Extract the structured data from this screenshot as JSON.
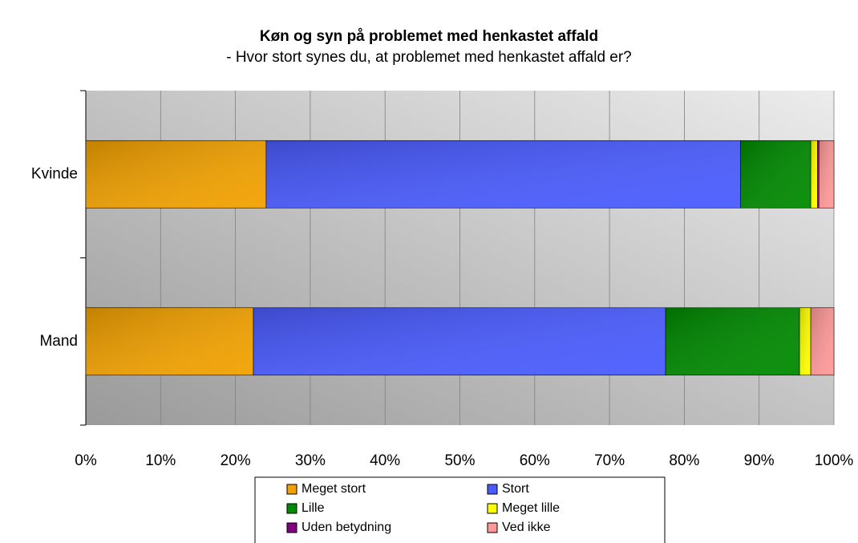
{
  "chart_data": {
    "type": "stacked-bar-horizontal",
    "title": "Køn og syn på problemet med henkastet affald",
    "subtitle": "- Hvor stort synes du, at problemet med henkastet affald er?",
    "categories": [
      "Kvinde",
      "Mand"
    ],
    "series": [
      {
        "name": "Meget stort",
        "color": "#f2a100",
        "values": [
          24.1,
          22.4
        ]
      },
      {
        "name": "Stort",
        "color": "#4a5cff",
        "values": [
          63.4,
          55.1
        ]
      },
      {
        "name": "Lille",
        "color": "#008a00",
        "values": [
          9.4,
          17.9
        ]
      },
      {
        "name": "Meget lille",
        "color": "#ffff00",
        "values": [
          0.9,
          1.5
        ]
      },
      {
        "name": "Uden betydning",
        "color": "#800080",
        "values": [
          0.2,
          0.0
        ]
      },
      {
        "name": "Ved ikke",
        "color": "#ff9999",
        "values": [
          2.0,
          3.1
        ]
      }
    ],
    "xlim": [
      0,
      100
    ],
    "xticks": [
      {
        "value": 0,
        "label": "0%"
      },
      {
        "value": 10,
        "label": "10%"
      },
      {
        "value": 20,
        "label": "20%"
      },
      {
        "value": 30,
        "label": "30%"
      },
      {
        "value": 40,
        "label": "40%"
      },
      {
        "value": 50,
        "label": "50%"
      },
      {
        "value": 60,
        "label": "60%"
      },
      {
        "value": 70,
        "label": "70%"
      },
      {
        "value": 80,
        "label": "80%"
      },
      {
        "value": 90,
        "label": "90%"
      },
      {
        "value": 100,
        "label": "100%"
      }
    ],
    "grid": true,
    "legend": "bottom"
  }
}
